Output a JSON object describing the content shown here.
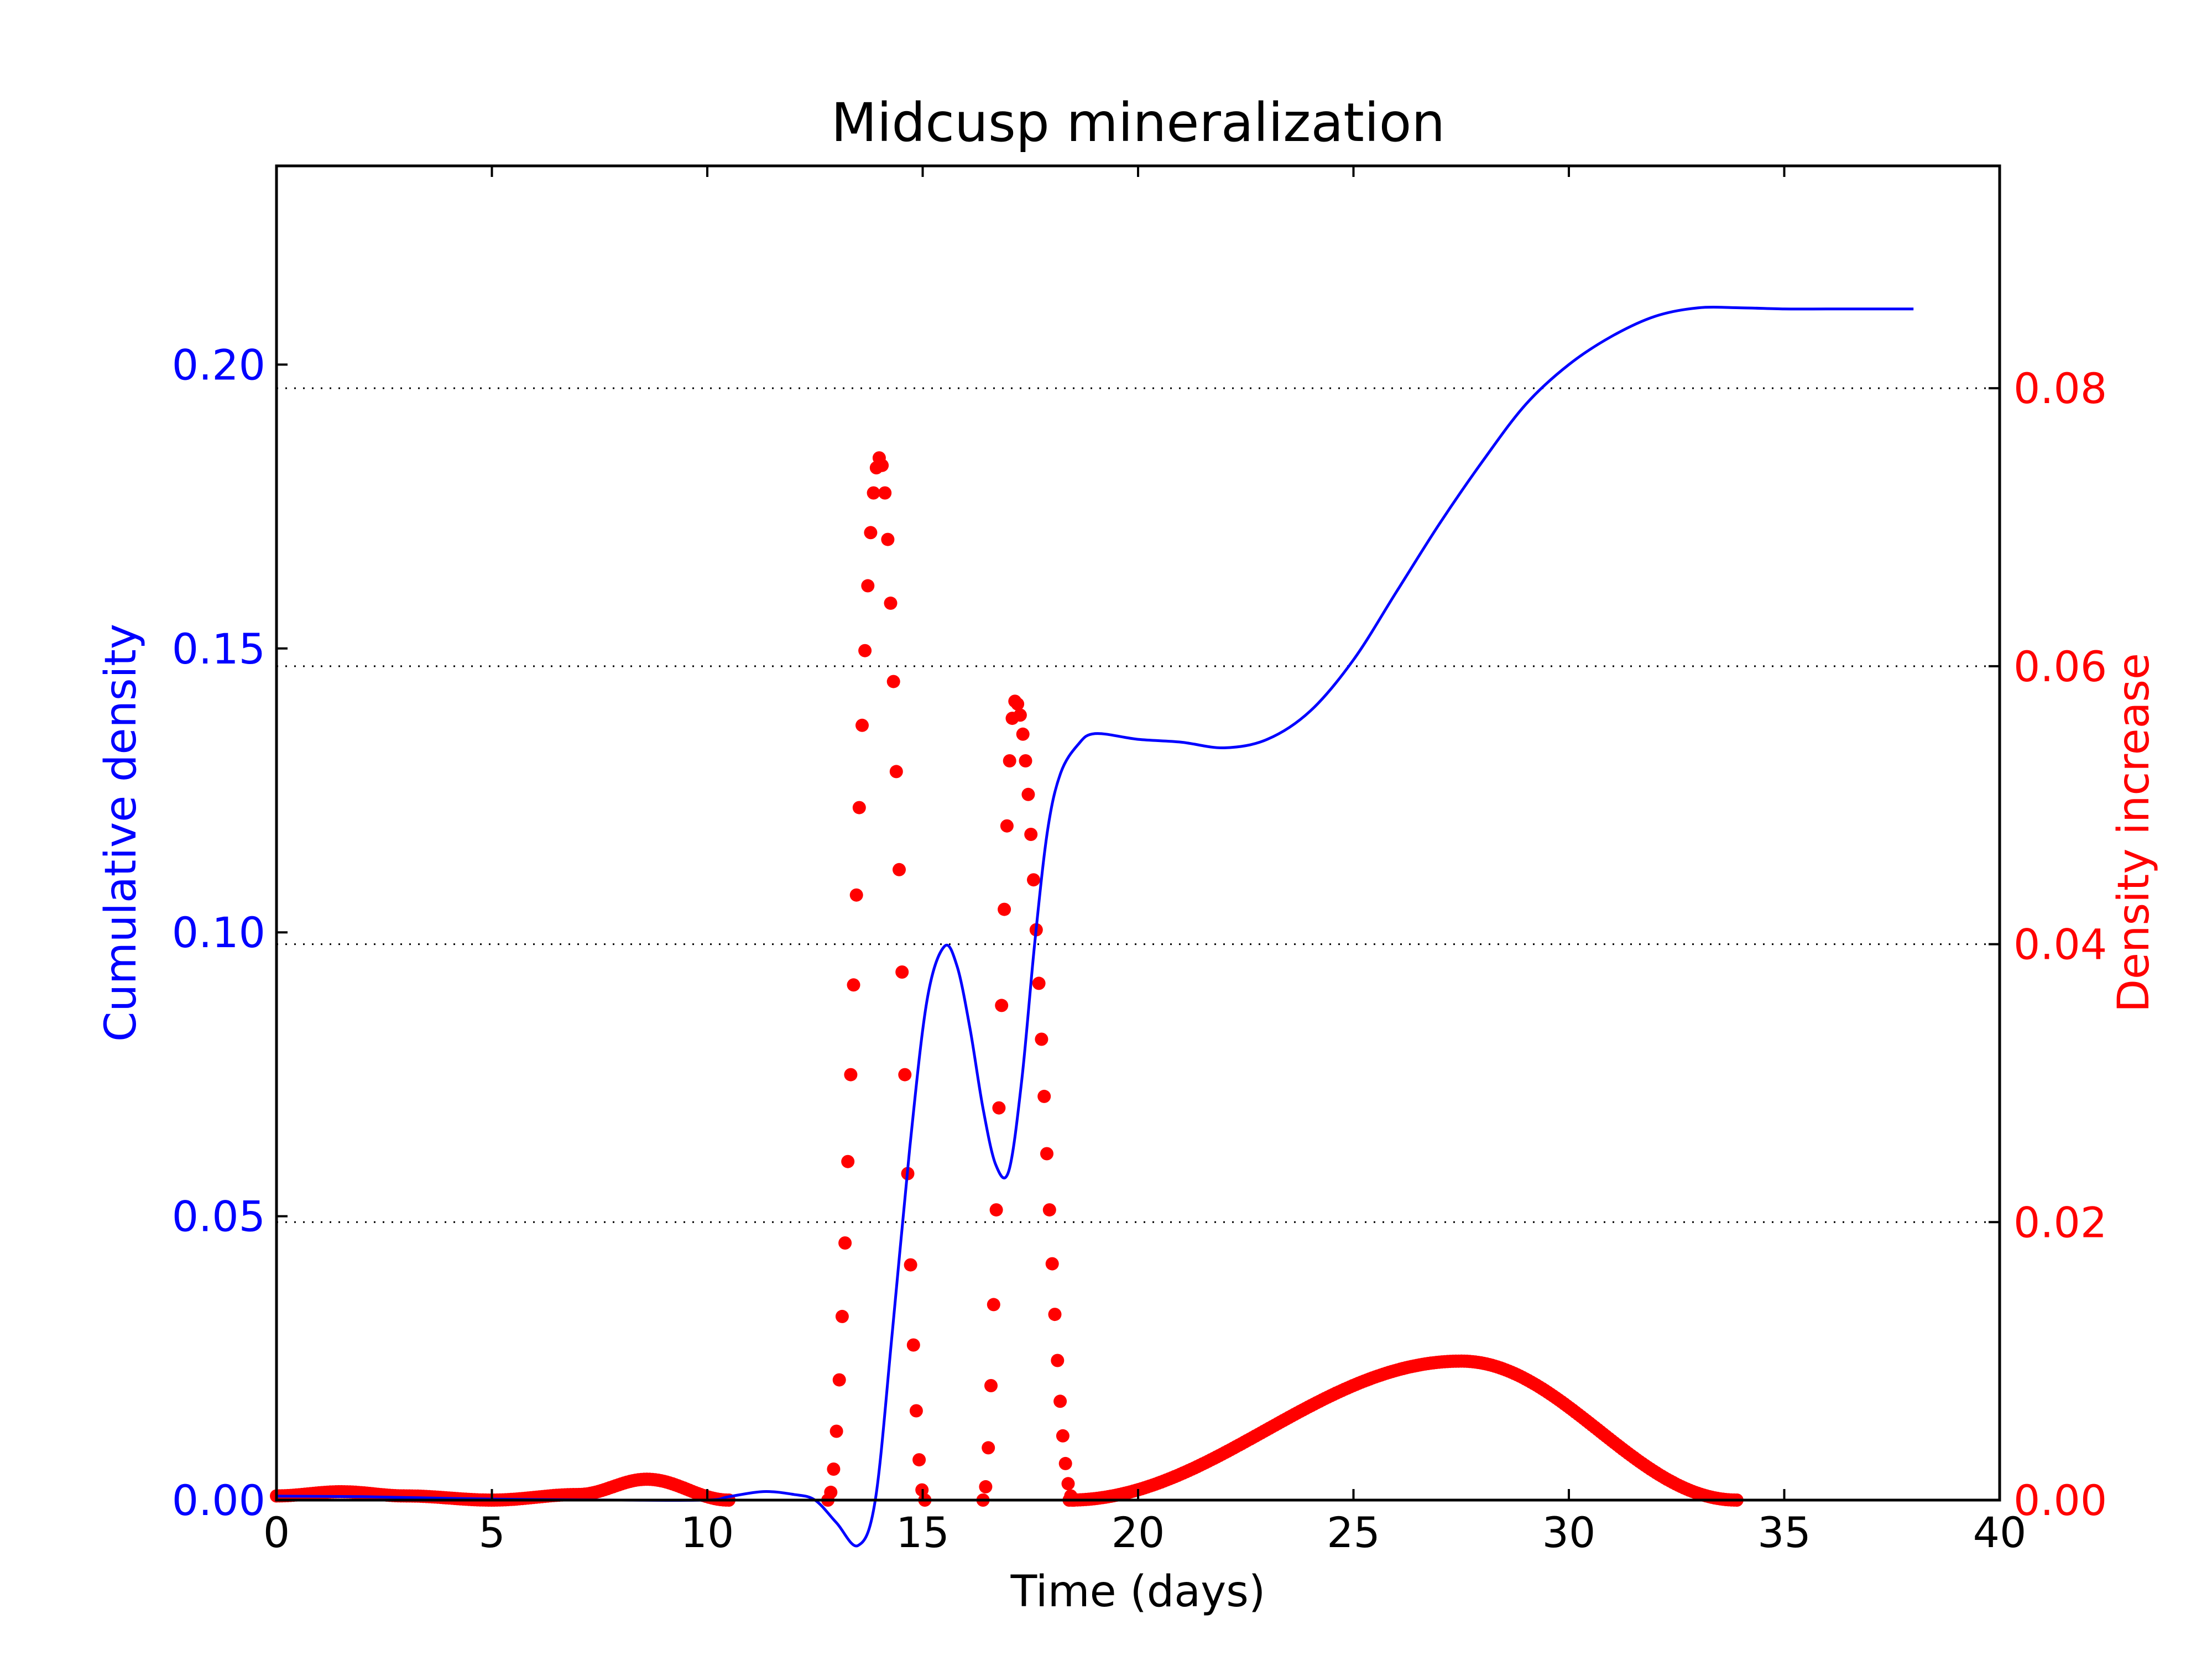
{
  "chart_data": {
    "type": "line",
    "title": "Midcusp mineralization",
    "xlabel": "Time (days)",
    "ylabel_left": "Cumulative density",
    "ylabel_right": "Density increase",
    "xlim": [
      0,
      40
    ],
    "ylim_left": [
      0,
      0.235
    ],
    "ylim_right": [
      0,
      0.096
    ],
    "x_ticks": [
      0,
      5,
      10,
      15,
      20,
      25,
      30,
      35,
      40
    ],
    "x_tick_labels": [
      "0",
      "5",
      "10",
      "15",
      "20",
      "25",
      "30",
      "35",
      "40"
    ],
    "y_left_ticks": [
      0.0,
      0.05,
      0.1,
      0.15,
      0.2
    ],
    "y_left_tick_labels": [
      "0.00",
      "0.05",
      "0.10",
      "0.15",
      "0.20"
    ],
    "y_right_ticks": [
      0.0,
      0.02,
      0.04,
      0.06,
      0.08
    ],
    "y_right_tick_labels": [
      "0.00",
      "0.02",
      "0.04",
      "0.06",
      "0.08"
    ],
    "grid": "horizontal dotted at right-axis ticks",
    "colors": {
      "left_axis": "#0000ff",
      "right_axis": "#ff0000",
      "frame": "#000000",
      "grid": "#000000"
    },
    "series": [
      {
        "axis": "left",
        "style": "solid line",
        "color": "#0000ff",
        "x": [
          0,
          2,
          4,
          6,
          8,
          10,
          10.5,
          11.3,
          12,
          12.5,
          13,
          13.5,
          13.9,
          14.3,
          14.7,
          15.1,
          15.5,
          15.8,
          16.1,
          16.4,
          16.7,
          17.0,
          17.3,
          17.6,
          17.9,
          18.2,
          18.6,
          19,
          20,
          21,
          22,
          23,
          24,
          25,
          26,
          27,
          28,
          29,
          30,
          31,
          32,
          33,
          34,
          35,
          36,
          37,
          38
        ],
        "y": [
          0.0007,
          0.0006,
          0.0003,
          0.0001,
          0.0,
          0.0,
          0.0006,
          0.0015,
          0.001,
          0.0,
          -0.004,
          -0.008,
          0.0,
          0.03,
          0.062,
          0.088,
          0.0975,
          0.094,
          0.083,
          0.069,
          0.059,
          0.058,
          0.074,
          0.098,
          0.118,
          0.128,
          0.133,
          0.135,
          0.134,
          0.1335,
          0.1325,
          0.134,
          0.139,
          0.148,
          0.16,
          0.172,
          0.183,
          0.193,
          0.2,
          0.205,
          0.2085,
          0.21,
          0.21,
          0.2098,
          0.2098,
          0.2098,
          0.2098
        ]
      },
      {
        "axis": "right",
        "style": "dots",
        "color": "#ff0000",
        "peaks": [
          {
            "x_start": 12.8,
            "x_peak": 14.0,
            "x_end": 15.05,
            "peak": 0.075
          },
          {
            "x_start": 16.4,
            "x_peak": 17.15,
            "x_end": 18.5,
            "peak": 0.0575
          },
          {
            "x_start": 18.4,
            "x_peak": 27.5,
            "x_end": 33.9,
            "peak": 0.01
          }
        ],
        "baseline_x": [
          0,
          1.5,
          3,
          5,
          7,
          8.6,
          10.5
        ],
        "baseline_y": [
          0.0003,
          0.0006,
          0.0003,
          0.0,
          0.0004,
          0.0015,
          0.0
        ]
      }
    ]
  }
}
